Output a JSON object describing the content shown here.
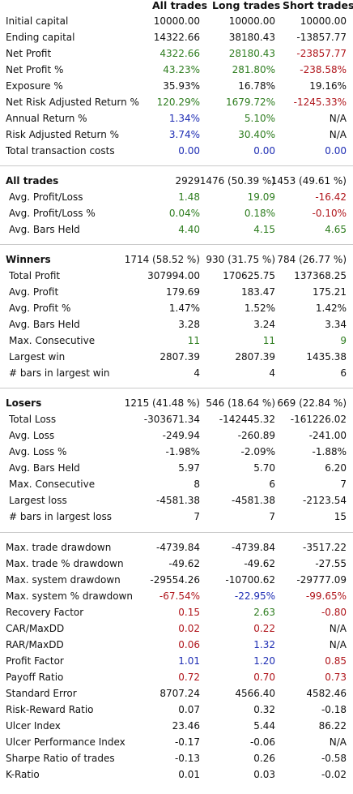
{
  "header": {
    "all": "All trades",
    "long": "Long trades",
    "short": "Short trades"
  },
  "sections": [
    {
      "rows": [
        {
          "label": "Initial capital",
          "vals": [
            "10000.00",
            "10000.00",
            "10000.00"
          ],
          "colors": [
            "black",
            "black",
            "black"
          ]
        },
        {
          "label": "Ending capital",
          "vals": [
            "14322.66",
            "38180.43",
            "-13857.77"
          ],
          "colors": [
            "black",
            "black",
            "black"
          ]
        },
        {
          "label": "Net Profit",
          "vals": [
            "4322.66",
            "28180.43",
            "-23857.77"
          ],
          "colors": [
            "green",
            "green",
            "red"
          ]
        },
        {
          "label": "Net Profit %",
          "vals": [
            "43.23%",
            "281.80%",
            "-238.58%"
          ],
          "colors": [
            "green",
            "green",
            "red"
          ]
        },
        {
          "label": "Exposure %",
          "vals": [
            "35.93%",
            "16.78%",
            "19.16%"
          ],
          "colors": [
            "black",
            "black",
            "black"
          ]
        },
        {
          "label": "Net Risk Adjusted Return %",
          "vals": [
            "120.29%",
            "1679.72%",
            "-1245.33%"
          ],
          "colors": [
            "green",
            "green",
            "red"
          ]
        },
        {
          "label": "Annual Return %",
          "vals": [
            "1.34%",
            "5.10%",
            "N/A"
          ],
          "colors": [
            "blue",
            "green",
            "black"
          ]
        },
        {
          "label": "Risk Adjusted Return %",
          "vals": [
            "3.74%",
            "30.40%",
            "N/A"
          ],
          "colors": [
            "blue",
            "green",
            "black"
          ]
        },
        {
          "label": "Total transaction costs",
          "vals": [
            "0.00",
            "0.00",
            "0.00"
          ],
          "colors": [
            "blue",
            "blue",
            "blue"
          ]
        }
      ]
    },
    {
      "rows": [
        {
          "label": "All trades",
          "bold": true,
          "vals": [
            "2929",
            "1476 (50.39 %)",
            "1453 (49.61 %)"
          ],
          "colors": [
            "black",
            "black",
            "black"
          ]
        },
        {
          "label": "Avg. Profit/Loss",
          "sub": true,
          "vals": [
            "1.48",
            "19.09",
            "-16.42"
          ],
          "colors": [
            "green",
            "green",
            "red"
          ]
        },
        {
          "label": "Avg. Profit/Loss %",
          "sub": true,
          "vals": [
            "0.04%",
            "0.18%",
            "-0.10%"
          ],
          "colors": [
            "green",
            "green",
            "red"
          ]
        },
        {
          "label": "Avg. Bars Held",
          "sub": true,
          "vals": [
            "4.40",
            "4.15",
            "4.65"
          ],
          "colors": [
            "green",
            "green",
            "green"
          ]
        }
      ]
    },
    {
      "rows": [
        {
          "label": "Winners",
          "bold": true,
          "vals": [
            "1714 (58.52 %)",
            "930 (31.75 %)",
            "784 (26.77 %)"
          ],
          "colors": [
            "black",
            "black",
            "black"
          ]
        },
        {
          "label": "Total Profit",
          "sub": true,
          "vals": [
            "307994.00",
            "170625.75",
            "137368.25"
          ],
          "colors": [
            "black",
            "black",
            "black"
          ]
        },
        {
          "label": "Avg. Profit",
          "sub": true,
          "vals": [
            "179.69",
            "183.47",
            "175.21"
          ],
          "colors": [
            "black",
            "black",
            "black"
          ]
        },
        {
          "label": "Avg. Profit %",
          "sub": true,
          "vals": [
            "1.47%",
            "1.52%",
            "1.42%"
          ],
          "colors": [
            "black",
            "black",
            "black"
          ]
        },
        {
          "label": "Avg. Bars Held",
          "sub": true,
          "vals": [
            "3.28",
            "3.24",
            "3.34"
          ],
          "colors": [
            "black",
            "black",
            "black"
          ]
        },
        {
          "label": "Max. Consecutive",
          "sub": true,
          "vals": [
            "11",
            "11",
            "9"
          ],
          "colors": [
            "green",
            "green",
            "green"
          ]
        },
        {
          "label": "Largest win",
          "sub": true,
          "vals": [
            "2807.39",
            "2807.39",
            "1435.38"
          ],
          "colors": [
            "black",
            "black",
            "black"
          ]
        },
        {
          "label": "# bars in largest win",
          "sub": true,
          "vals": [
            "4",
            "4",
            "6"
          ],
          "colors": [
            "black",
            "black",
            "black"
          ]
        }
      ]
    },
    {
      "rows": [
        {
          "label": "Losers",
          "bold": true,
          "vals": [
            "1215 (41.48 %)",
            "546 (18.64 %)",
            "669 (22.84 %)"
          ],
          "colors": [
            "black",
            "black",
            "black"
          ]
        },
        {
          "label": "Total Loss",
          "sub": true,
          "vals": [
            "-303671.34",
            "-142445.32",
            "-161226.02"
          ],
          "colors": [
            "black",
            "black",
            "black"
          ]
        },
        {
          "label": "Avg. Loss",
          "sub": true,
          "vals": [
            "-249.94",
            "-260.89",
            "-241.00"
          ],
          "colors": [
            "black",
            "black",
            "black"
          ]
        },
        {
          "label": "Avg. Loss %",
          "sub": true,
          "vals": [
            "-1.98%",
            "-2.09%",
            "-1.88%"
          ],
          "colors": [
            "black",
            "black",
            "black"
          ]
        },
        {
          "label": "Avg. Bars Held",
          "sub": true,
          "vals": [
            "5.97",
            "5.70",
            "6.20"
          ],
          "colors": [
            "black",
            "black",
            "black"
          ]
        },
        {
          "label": "Max. Consecutive",
          "sub": true,
          "vals": [
            "8",
            "6",
            "7"
          ],
          "colors": [
            "black",
            "black",
            "black"
          ]
        },
        {
          "label": "Largest loss",
          "sub": true,
          "vals": [
            "-4581.38",
            "-4581.38",
            "-2123.54"
          ],
          "colors": [
            "black",
            "black",
            "black"
          ]
        },
        {
          "label": "# bars in largest loss",
          "sub": true,
          "vals": [
            "7",
            "7",
            "15"
          ],
          "colors": [
            "black",
            "black",
            "black"
          ]
        }
      ]
    },
    {
      "rows": [
        {
          "label": "Max. trade drawdown",
          "vals": [
            "-4739.84",
            "-4739.84",
            "-3517.22"
          ],
          "colors": [
            "black",
            "black",
            "black"
          ]
        },
        {
          "label": "Max. trade % drawdown",
          "vals": [
            "-49.62",
            "-49.62",
            "-27.55"
          ],
          "colors": [
            "black",
            "black",
            "black"
          ]
        },
        {
          "label": "Max. system drawdown",
          "vals": [
            "-29554.26",
            "-10700.62",
            "-29777.09"
          ],
          "colors": [
            "black",
            "black",
            "black"
          ]
        },
        {
          "label": "Max. system % drawdown",
          "vals": [
            "-67.54%",
            "-22.95%",
            "-99.65%"
          ],
          "colors": [
            "red",
            "blue",
            "red"
          ]
        },
        {
          "label": "Recovery Factor",
          "vals": [
            "0.15",
            "2.63",
            "-0.80"
          ],
          "colors": [
            "red",
            "green",
            "red"
          ]
        },
        {
          "label": "CAR/MaxDD",
          "vals": [
            "0.02",
            "0.22",
            "N/A"
          ],
          "colors": [
            "red",
            "red",
            "black"
          ]
        },
        {
          "label": "RAR/MaxDD",
          "vals": [
            "0.06",
            "1.32",
            "N/A"
          ],
          "colors": [
            "red",
            "blue",
            "black"
          ]
        },
        {
          "label": "Profit Factor",
          "vals": [
            "1.01",
            "1.20",
            "0.85"
          ],
          "colors": [
            "blue",
            "blue",
            "red"
          ]
        },
        {
          "label": "Payoff Ratio",
          "vals": [
            "0.72",
            "0.70",
            "0.73"
          ],
          "colors": [
            "red",
            "red",
            "red"
          ]
        },
        {
          "label": "Standard Error",
          "vals": [
            "8707.24",
            "4566.40",
            "4582.46"
          ],
          "colors": [
            "black",
            "black",
            "black"
          ]
        },
        {
          "label": "Risk-Reward Ratio",
          "vals": [
            "0.07",
            "0.32",
            "-0.18"
          ],
          "colors": [
            "black",
            "black",
            "black"
          ]
        },
        {
          "label": "Ulcer Index",
          "vals": [
            "23.46",
            "5.44",
            "86.22"
          ],
          "colors": [
            "black",
            "black",
            "black"
          ]
        },
        {
          "label": "Ulcer Performance Index",
          "vals": [
            "-0.17",
            "-0.06",
            "N/A"
          ],
          "colors": [
            "black",
            "black",
            "black"
          ]
        },
        {
          "label": "Sharpe Ratio of trades",
          "vals": [
            "-0.13",
            "0.26",
            "-0.58"
          ],
          "colors": [
            "black",
            "black",
            "black"
          ]
        },
        {
          "label": "K-Ratio",
          "vals": [
            "0.01",
            "0.03",
            "-0.02"
          ],
          "colors": [
            "black",
            "black",
            "black"
          ]
        }
      ]
    }
  ]
}
